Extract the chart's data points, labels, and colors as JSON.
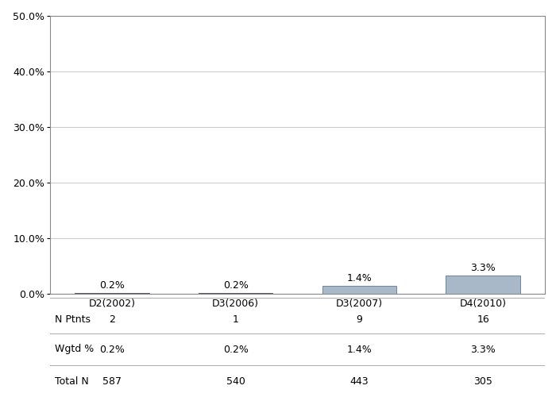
{
  "categories": [
    "D2(2002)",
    "D3(2006)",
    "D3(2007)",
    "D4(2010)"
  ],
  "values": [
    0.2,
    0.2,
    1.4,
    3.3
  ],
  "bar_colors_d1": [
    "#787888",
    "#787888"
  ],
  "bar_colors_d2": [
    "#a8b8cc",
    "#a8b8cc"
  ],
  "labels": [
    "0.2%",
    "0.2%",
    "1.4%",
    "3.3%"
  ],
  "n_ptnts": [
    "2",
    "1",
    "9",
    "16"
  ],
  "wgtd_pct": [
    "0.2%",
    "0.2%",
    "1.4%",
    "3.3%"
  ],
  "total_n": [
    "587",
    "540",
    "443",
    "305"
  ],
  "ylim": [
    0,
    50
  ],
  "yticks": [
    0,
    10,
    20,
    30,
    40,
    50
  ],
  "ytick_labels": [
    "0.0%",
    "10.0%",
    "20.0%",
    "30.0%",
    "40.0%",
    "50.0%"
  ],
  "table_row_labels": [
    "N Ptnts",
    "Wgtd %",
    "Total N"
  ],
  "background_color": "#ffffff",
  "grid_color": "#cccccc",
  "bar_width": 0.6,
  "font_size": 9,
  "label_font_size": 9
}
